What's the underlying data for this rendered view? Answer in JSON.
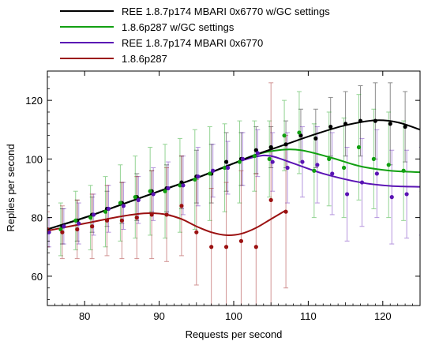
{
  "chart_data": {
    "type": "line",
    "xlabel": "Requests per second",
    "ylabel": "Replies per second",
    "xlim": [
      75,
      125
    ],
    "ylim": [
      50,
      130
    ],
    "xticks": [
      80,
      90,
      100,
      110,
      120
    ],
    "yticks": [
      60,
      80,
      100,
      120
    ],
    "legend_position": "top-left above plot",
    "grid": false,
    "series": [
      {
        "name": "REE 1.8.7p174 MBARI 0x6770 w/GC settings",
        "color": "#000000",
        "fit": [
          [
            75,
            76
          ],
          [
            80,
            80
          ],
          [
            85,
            84.5
          ],
          [
            90,
            89
          ],
          [
            95,
            93.5
          ],
          [
            100,
            98.5
          ],
          [
            103,
            101.5
          ],
          [
            107,
            105
          ],
          [
            111,
            108.5
          ],
          [
            115,
            111.5
          ],
          [
            119,
            113.2
          ],
          [
            122,
            112.5
          ],
          [
            125,
            110
          ]
        ],
        "points": [
          {
            "x": 75,
            "y": 75,
            "err": 5
          },
          {
            "x": 77,
            "y": 77,
            "err": 6
          },
          {
            "x": 79,
            "y": 79,
            "err": 7
          },
          {
            "x": 81,
            "y": 81,
            "err": 6
          },
          {
            "x": 83,
            "y": 83,
            "err": 6
          },
          {
            "x": 85,
            "y": 85,
            "err": 7
          },
          {
            "x": 87,
            "y": 87,
            "err": 8
          },
          {
            "x": 89,
            "y": 89,
            "err": 7
          },
          {
            "x": 91,
            "y": 90,
            "err": 8
          },
          {
            "x": 93,
            "y": 92,
            "err": 9
          },
          {
            "x": 95,
            "y": 94,
            "err": 9
          },
          {
            "x": 97,
            "y": 95,
            "err": 10
          },
          {
            "x": 99,
            "y": 99,
            "err": 10
          },
          {
            "x": 101,
            "y": 100,
            "err": 9
          },
          {
            "x": 103,
            "y": 103,
            "err": 8
          },
          {
            "x": 105,
            "y": 104,
            "err": 7
          },
          {
            "x": 107,
            "y": 105,
            "err": 8
          },
          {
            "x": 109,
            "y": 108,
            "err": 9
          },
          {
            "x": 111,
            "y": 107,
            "err": 10
          },
          {
            "x": 113,
            "y": 111,
            "err": 10
          },
          {
            "x": 115,
            "y": 112,
            "err": 11
          },
          {
            "x": 117,
            "y": 113,
            "err": 12
          },
          {
            "x": 119,
            "y": 113,
            "err": 13
          },
          {
            "x": 121,
            "y": 112,
            "err": 14
          },
          {
            "x": 123,
            "y": 111,
            "err": 12
          }
        ]
      },
      {
        "name": "1.8.6p287 w/GC settings",
        "color": "#11a011",
        "fit": [
          [
            75,
            76
          ],
          [
            80,
            80
          ],
          [
            85,
            84.5
          ],
          [
            90,
            89
          ],
          [
            95,
            93.5
          ],
          [
            100,
            98.5
          ],
          [
            103,
            101.5
          ],
          [
            106,
            103
          ],
          [
            109,
            103
          ],
          [
            113,
            100.5
          ],
          [
            117,
            97.5
          ],
          [
            121,
            96
          ],
          [
            125,
            95.5
          ]
        ],
        "points": [
          {
            "x": 75,
            "y": 75,
            "err": 6
          },
          {
            "x": 77,
            "y": 76,
            "err": 9
          },
          {
            "x": 79,
            "y": 79,
            "err": 10
          },
          {
            "x": 81,
            "y": 80,
            "err": 11
          },
          {
            "x": 83,
            "y": 82,
            "err": 12
          },
          {
            "x": 85,
            "y": 85,
            "err": 13
          },
          {
            "x": 87,
            "y": 87,
            "err": 14
          },
          {
            "x": 89,
            "y": 89,
            "err": 15
          },
          {
            "x": 91,
            "y": 89,
            "err": 16
          },
          {
            "x": 93,
            "y": 91,
            "err": 16
          },
          {
            "x": 95,
            "y": 93,
            "err": 17
          },
          {
            "x": 97,
            "y": 95,
            "err": 16
          },
          {
            "x": 99,
            "y": 97,
            "err": 15
          },
          {
            "x": 101,
            "y": 99,
            "err": 14
          },
          {
            "x": 103,
            "y": 101,
            "err": 12
          },
          {
            "x": 105,
            "y": 100,
            "err": 13
          },
          {
            "x": 107,
            "y": 108,
            "err": 12
          },
          {
            "x": 109,
            "y": 109,
            "err": 14
          },
          {
            "x": 111,
            "y": 96,
            "err": 16
          },
          {
            "x": 113,
            "y": 100,
            "err": 16
          },
          {
            "x": 115,
            "y": 97,
            "err": 17
          },
          {
            "x": 117,
            "y": 104,
            "err": 18
          },
          {
            "x": 119,
            "y": 100,
            "err": 17
          },
          {
            "x": 121,
            "y": 98,
            "err": 18
          },
          {
            "x": 123,
            "y": 96,
            "err": 17
          }
        ]
      },
      {
        "name": "REE 1.8.7p174 MBARI 0x6770",
        "color": "#5a14b4",
        "fit": [
          [
            75,
            76
          ],
          [
            80,
            80
          ],
          [
            85,
            84.5
          ],
          [
            90,
            89
          ],
          [
            95,
            93.5
          ],
          [
            100,
            98.5
          ],
          [
            103,
            100.8
          ],
          [
            105,
            101
          ],
          [
            108,
            98.5
          ],
          [
            112,
            95
          ],
          [
            117,
            92
          ],
          [
            121,
            90.8
          ],
          [
            125,
            90.5
          ]
        ],
        "points": [
          {
            "x": 75,
            "y": 75,
            "err": 5
          },
          {
            "x": 77,
            "y": 77,
            "err": 6
          },
          {
            "x": 79,
            "y": 78,
            "err": 7
          },
          {
            "x": 81,
            "y": 81,
            "err": 7
          },
          {
            "x": 83,
            "y": 83,
            "err": 8
          },
          {
            "x": 85,
            "y": 84,
            "err": 8
          },
          {
            "x": 87,
            "y": 86,
            "err": 8
          },
          {
            "x": 89,
            "y": 88,
            "err": 9
          },
          {
            "x": 91,
            "y": 90,
            "err": 9
          },
          {
            "x": 93,
            "y": 91,
            "err": 10
          },
          {
            "x": 95,
            "y": 94,
            "err": 10
          },
          {
            "x": 97,
            "y": 96,
            "err": 9
          },
          {
            "x": 99,
            "y": 97,
            "err": 9
          },
          {
            "x": 101,
            "y": 100,
            "err": 9
          },
          {
            "x": 103,
            "y": 102,
            "err": 8
          },
          {
            "x": 105,
            "y": 99,
            "err": 10
          },
          {
            "x": 107,
            "y": 97,
            "err": 12
          },
          {
            "x": 109,
            "y": 99,
            "err": 12
          },
          {
            "x": 111,
            "y": 98,
            "err": 13
          },
          {
            "x": 113,
            "y": 95,
            "err": 14
          },
          {
            "x": 115,
            "y": 88,
            "err": 16
          },
          {
            "x": 117,
            "y": 92,
            "err": 15
          },
          {
            "x": 119,
            "y": 95,
            "err": 15
          },
          {
            "x": 121,
            "y": 87,
            "err": 16
          },
          {
            "x": 123,
            "y": 88,
            "err": 15
          },
          {
            "x": 125,
            "y": 89,
            "err": 15
          }
        ]
      },
      {
        "name": "1.8.6p287",
        "color": "#9b1111",
        "fit": [
          [
            75,
            75.5
          ],
          [
            78,
            77
          ],
          [
            81,
            78.5
          ],
          [
            84,
            80
          ],
          [
            87,
            81.2
          ],
          [
            89,
            81.5
          ],
          [
            91,
            81
          ],
          [
            93,
            79.5
          ],
          [
            95,
            77
          ],
          [
            97,
            75
          ],
          [
            99,
            74
          ],
          [
            101,
            74.5
          ],
          [
            103,
            76.5
          ],
          [
            105,
            79.5
          ],
          [
            107,
            82.5
          ]
        ],
        "points": [
          {
            "x": 75,
            "y": 76,
            "err": 6
          },
          {
            "x": 77,
            "y": 75,
            "err": 9
          },
          {
            "x": 79,
            "y": 76,
            "err": 10
          },
          {
            "x": 81,
            "y": 77,
            "err": 11
          },
          {
            "x": 83,
            "y": 79,
            "err": 12
          },
          {
            "x": 85,
            "y": 79,
            "err": 13
          },
          {
            "x": 87,
            "y": 80,
            "err": 14
          },
          {
            "x": 89,
            "y": 81,
            "err": 15
          },
          {
            "x": 91,
            "y": 81,
            "err": 16
          },
          {
            "x": 93,
            "y": 84,
            "err": 17
          },
          {
            "x": 95,
            "y": 75,
            "err": 18
          },
          {
            "x": 97,
            "y": 70,
            "err": 20
          },
          {
            "x": 99,
            "y": 70,
            "err": 22
          },
          {
            "x": 101,
            "y": 72,
            "err": 24
          },
          {
            "x": 103,
            "y": 70,
            "err": 25
          },
          {
            "x": 105,
            "y": 86,
            "err": 40
          },
          {
            "x": 107,
            "y": 82,
            "err": 26
          }
        ]
      }
    ]
  }
}
